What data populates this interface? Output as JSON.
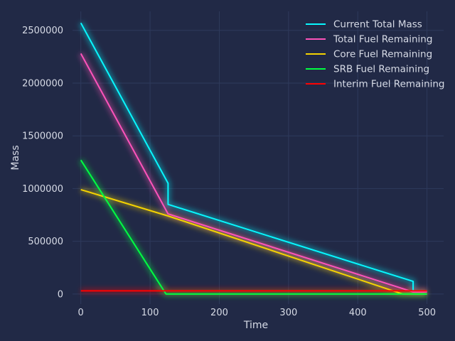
{
  "chart_data": {
    "type": "line",
    "title": "",
    "xlabel": "Time",
    "ylabel": "Mass",
    "xlim": [
      -12,
      524
    ],
    "ylim": [
      -95000,
      2680000
    ],
    "xticks": [
      0,
      100,
      200,
      300,
      400,
      500
    ],
    "yticks": [
      0,
      500000,
      1000000,
      1500000,
      2000000,
      2500000
    ],
    "xtick_labels": [
      "0",
      "100",
      "200",
      "300",
      "400",
      "500"
    ],
    "ytick_labels": [
      "0",
      "500000",
      "1000000",
      "1500000",
      "2000000",
      "2500000"
    ],
    "grid": true,
    "legend_position": "top-right",
    "series": [
      {
        "name": "Current Total Mass",
        "color": "#08F7FE",
        "x": [
          0,
          126,
          126,
          480,
          480,
          500
        ],
        "y": [
          2570000,
          1050000,
          850000,
          120000,
          30000,
          30000
        ]
      },
      {
        "name": "Total Fuel Remaining",
        "color": "#FE53BB",
        "x": [
          0,
          126,
          480,
          500
        ],
        "y": [
          2280000,
          760000,
          20000,
          20000
        ]
      },
      {
        "name": "Core Fuel Remaining",
        "color": "#F5D300",
        "x": [
          0,
          126,
          465,
          480,
          500
        ],
        "y": [
          990000,
          740000,
          0,
          0,
          0
        ]
      },
      {
        "name": "SRB Fuel Remaining",
        "color": "#00ff41",
        "x": [
          0,
          123,
          500
        ],
        "y": [
          1270000,
          0,
          0
        ]
      },
      {
        "name": "Interim Fuel Remaining",
        "color": "#FF0000",
        "x": [
          0,
          500
        ],
        "y": [
          30000,
          30000
        ]
      }
    ]
  }
}
